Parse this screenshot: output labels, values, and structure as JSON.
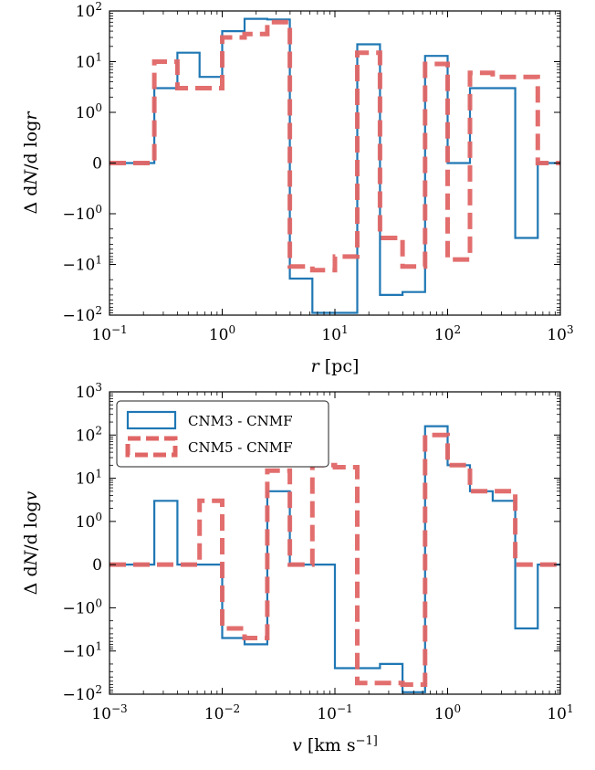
{
  "colors": {
    "cnm3": "#1f77b4",
    "cnm5": "#e06666"
  },
  "chart_data": [
    {
      "type": "line",
      "xlabel": "r [pc]",
      "ylabel": "Δ dN/d logr",
      "xscale": "log",
      "yscale": "symlog",
      "xlim": [
        0.1,
        1000
      ],
      "ylim": [
        -100,
        100
      ],
      "xticks": [
        0.1,
        1,
        10,
        100,
        1000
      ],
      "xtick_labels": [
        "10^−1",
        "10^0",
        "10^1",
        "10^2",
        "10^3"
      ],
      "yticks": [
        100,
        10,
        1,
        0,
        -1,
        -10,
        -100
      ],
      "ytick_labels": [
        "10^2",
        "10^1",
        "10^0",
        "0",
        "−10^0",
        "−10^1",
        "−10^2"
      ],
      "grid": false,
      "series": [
        {
          "name": "CNM3 - CNMF",
          "style": "step",
          "color": "#1f77b4",
          "edges": [
            0.1,
            0.25,
            0.4,
            0.63,
            1.0,
            1.58,
            2.51,
            3.98,
            6.31,
            10.0,
            15.8,
            25.1,
            39.8,
            63.1,
            100,
            158,
            251,
            398,
            631,
            1000
          ],
          "values": [
            0,
            3,
            15,
            5,
            40,
            70,
            68,
            -19,
            -90,
            -90,
            22,
            -40,
            -35,
            13,
            0,
            3,
            3,
            -3,
            0
          ]
        },
        {
          "name": "CNM5 - CNMF",
          "style": "step-dashed",
          "color": "#e06666",
          "edges": [
            0.1,
            0.25,
            0.4,
            0.63,
            1.0,
            1.58,
            2.51,
            3.98,
            6.31,
            10.0,
            15.8,
            25.1,
            39.8,
            63.1,
            100,
            158,
            251,
            398,
            631,
            1000
          ],
          "values": [
            0,
            10,
            3,
            3,
            30,
            35,
            60,
            -11,
            -13,
            -7,
            15,
            -3,
            -11,
            9,
            -8,
            6,
            5,
            5,
            0
          ]
        }
      ]
    },
    {
      "type": "line",
      "xlabel": "v [km s^−1]",
      "ylabel": "Δ dN/d logv",
      "xscale": "log",
      "yscale": "symlog",
      "xlim": [
        0.001,
        10
      ],
      "ylim": [
        -100,
        1000
      ],
      "xticks": [
        0.001,
        0.01,
        0.1,
        1,
        10
      ],
      "xtick_labels": [
        "10^−3",
        "10^−2",
        "10^−1",
        "10^0",
        "10^1"
      ],
      "yticks": [
        1000,
        100,
        10,
        1,
        0,
        -1,
        -10,
        -100
      ],
      "ytick_labels": [
        "10^3",
        "10^2",
        "10^1",
        "10^0",
        "0",
        "−10^0",
        "−10^1",
        "−10^2"
      ],
      "grid": false,
      "legend": {
        "position": "top-left",
        "entries": [
          "CNM3 - CNMF",
          "CNM5 - CNMF"
        ]
      },
      "series": [
        {
          "name": "CNM3 - CNMF",
          "style": "step",
          "color": "#1f77b4",
          "edges": [
            0.001,
            0.0025,
            0.004,
            0.0063,
            0.01,
            0.0158,
            0.0251,
            0.0398,
            0.0631,
            0.1,
            0.158,
            0.251,
            0.398,
            0.631,
            1.0,
            1.58,
            2.51,
            3.98,
            6.31,
            10
          ],
          "values": [
            0,
            3,
            0,
            0,
            -5,
            -7,
            5,
            0,
            0,
            -25,
            -25,
            -20,
            -90,
            160,
            20,
            5,
            3,
            -3,
            0
          ]
        },
        {
          "name": "CNM5 - CNMF",
          "style": "step-dashed",
          "color": "#e06666",
          "edges": [
            0.001,
            0.0025,
            0.004,
            0.0063,
            0.01,
            0.0158,
            0.0251,
            0.0398,
            0.0631,
            0.1,
            0.158,
            0.251,
            0.398,
            0.631,
            1.0,
            1.58,
            2.51,
            3.98,
            6.31,
            10
          ],
          "values": [
            0,
            0,
            0,
            3,
            -3,
            -5,
            15,
            0,
            20,
            18,
            -55,
            -55,
            -60,
            100,
            20,
            5,
            5,
            0,
            0
          ]
        }
      ]
    }
  ]
}
